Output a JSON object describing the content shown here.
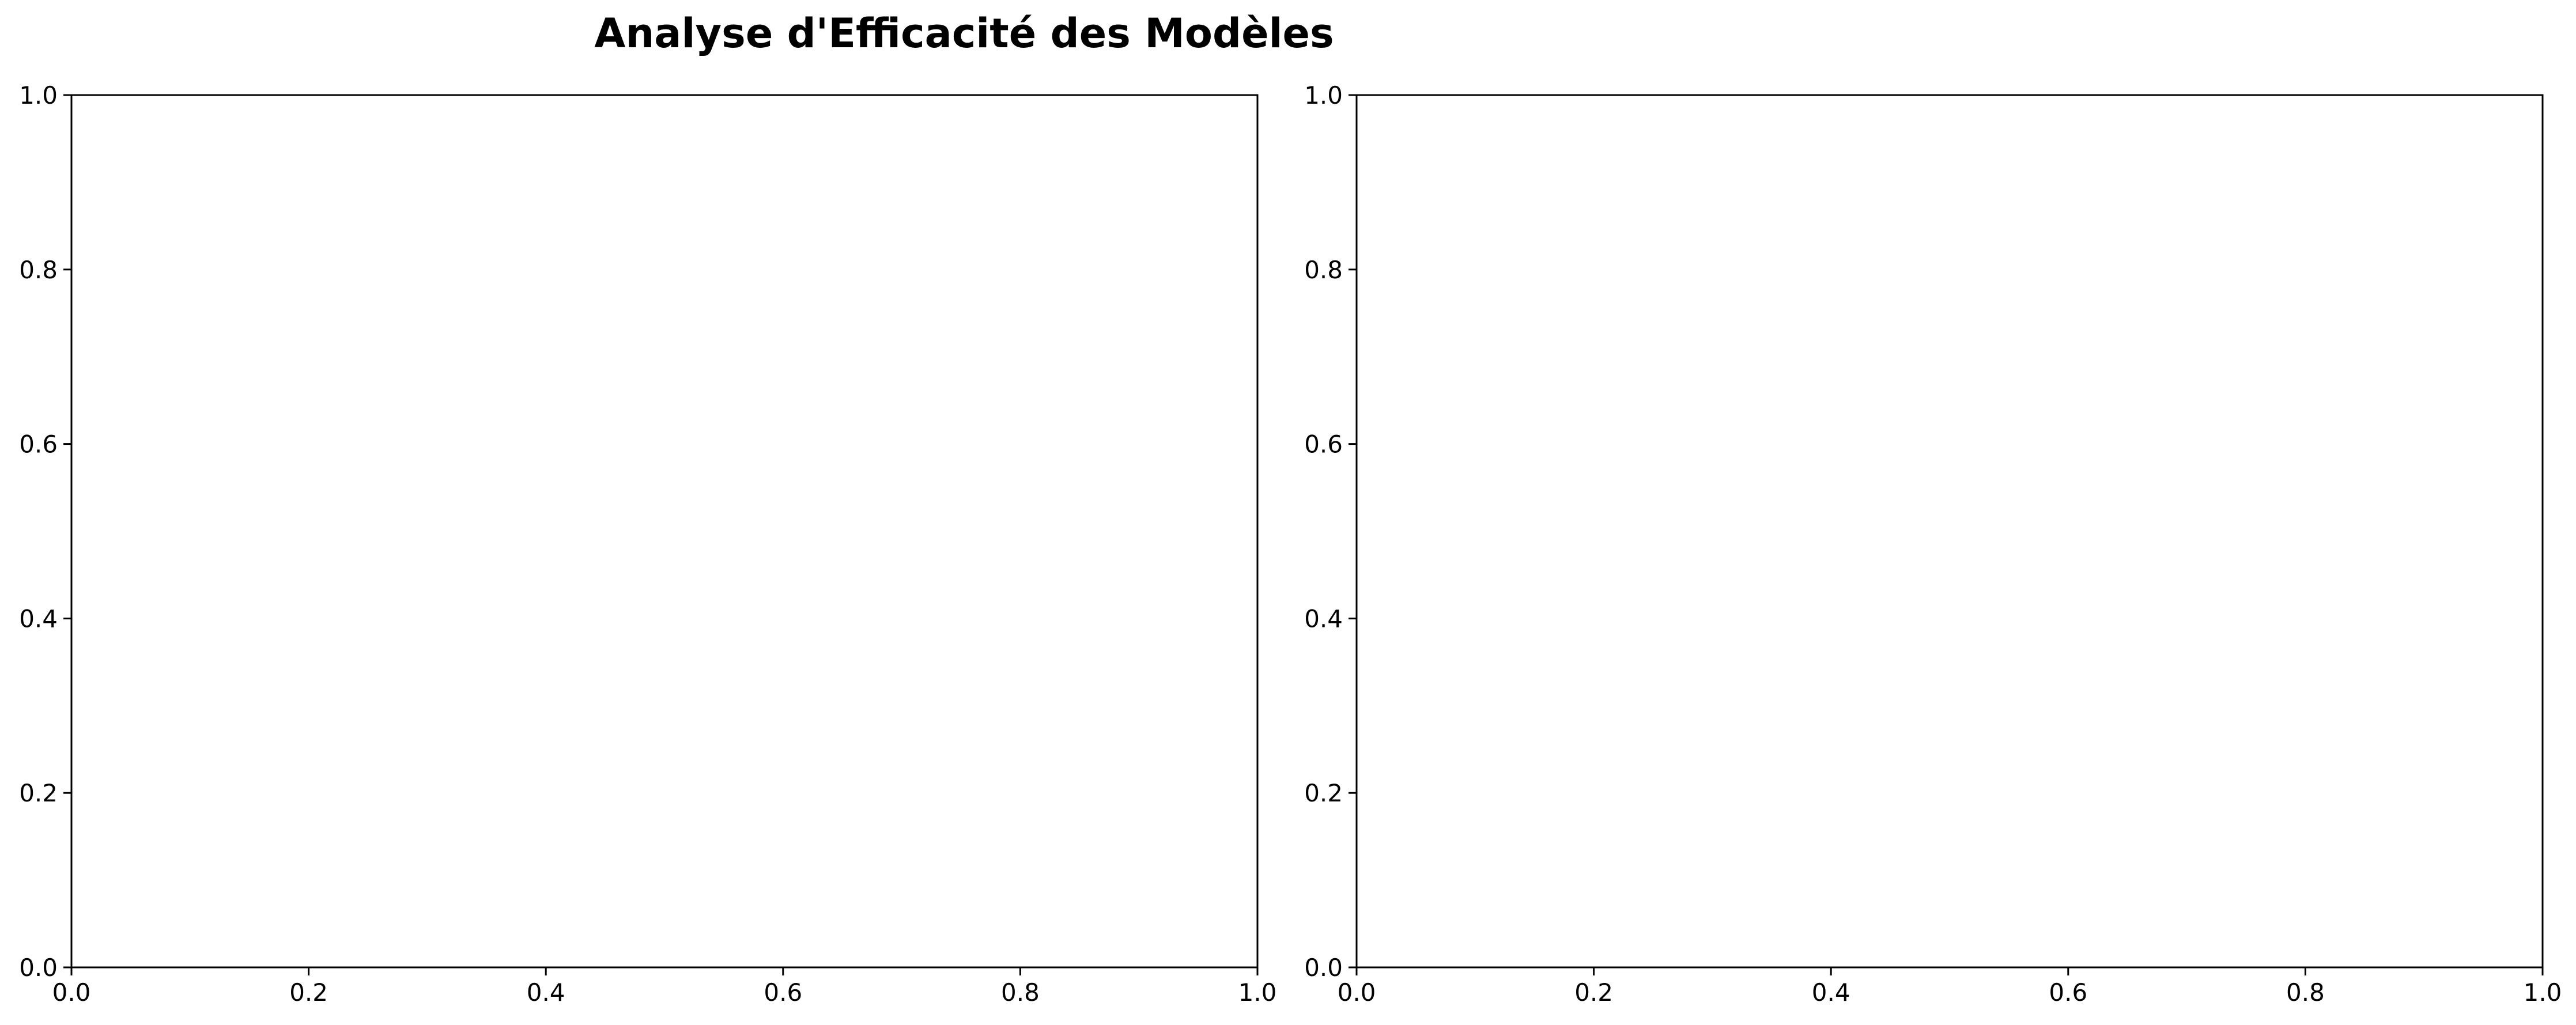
{
  "figure": {
    "title": "Analyse d'Efficacité des Modèles",
    "colors": {
      "background": "#ffffff",
      "axis": "#000000",
      "text": "#000000"
    }
  },
  "chart_data": [
    {
      "type": "scatter",
      "title": "",
      "xlabel": "",
      "ylabel": "",
      "xlim": [
        0,
        1
      ],
      "ylim": [
        0,
        1
      ],
      "xticks": [
        0.0,
        0.2,
        0.4,
        0.6,
        0.8,
        1.0
      ],
      "yticks": [
        0.0,
        0.2,
        0.4,
        0.6,
        0.8,
        1.0
      ],
      "xtick_labels": [
        "0.0",
        "0.2",
        "0.4",
        "0.6",
        "0.8",
        "1.0"
      ],
      "ytick_labels": [
        "0.0",
        "0.2",
        "0.4",
        "0.6",
        "0.8",
        "1.0"
      ],
      "grid": false,
      "series": []
    },
    {
      "type": "scatter",
      "title": "",
      "xlabel": "",
      "ylabel": "",
      "xlim": [
        0,
        1
      ],
      "ylim": [
        0,
        1
      ],
      "xticks": [
        0.0,
        0.2,
        0.4,
        0.6,
        0.8,
        1.0
      ],
      "yticks": [
        0.0,
        0.2,
        0.4,
        0.6,
        0.8,
        1.0
      ],
      "xtick_labels": [
        "0.0",
        "0.2",
        "0.4",
        "0.6",
        "0.8",
        "1.0"
      ],
      "ytick_labels": [
        "0.0",
        "0.2",
        "0.4",
        "0.6",
        "0.8",
        "1.0"
      ],
      "grid": false,
      "series": []
    }
  ]
}
